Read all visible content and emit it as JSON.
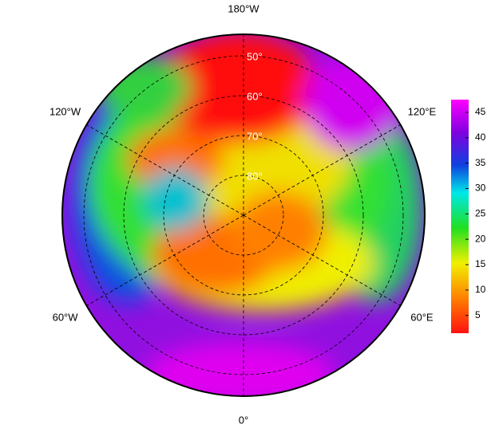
{
  "map": {
    "longitudes": [
      {
        "value": -180,
        "label": "180°W"
      },
      {
        "value": -120,
        "label": "120°W"
      },
      {
        "value": 120,
        "label": "120°E"
      },
      {
        "value": -60,
        "label": "60°W"
      },
      {
        "value": 60,
        "label": "60°E"
      },
      {
        "value": 0,
        "label": "0°"
      }
    ],
    "latitudes": [
      {
        "value": 50,
        "label": "50°"
      },
      {
        "value": 60,
        "label": "60°"
      },
      {
        "value": 70,
        "label": "70°"
      },
      {
        "value": 80,
        "label": "80°"
      }
    ],
    "colorbar": {
      "range": [
        1.5,
        47.5
      ],
      "ticks": [
        5,
        10,
        15,
        20,
        25,
        30,
        35,
        40,
        45
      ]
    }
  }
}
